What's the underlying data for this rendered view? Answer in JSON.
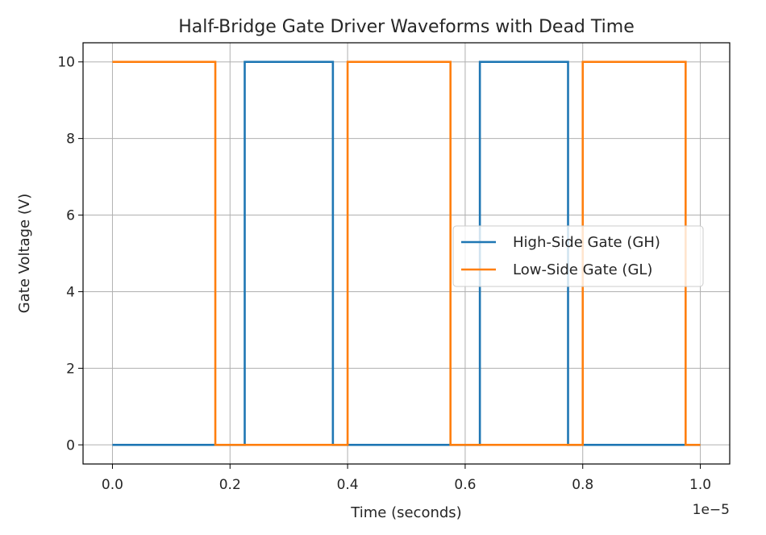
{
  "chart_data": {
    "type": "line",
    "title": "Half-Bridge Gate Driver Waveforms with Dead Time",
    "xlabel": "Time (seconds)",
    "ylabel": "Gate Voltage (V)",
    "x_offset_text": "1e−5",
    "xlim": [
      -0.05,
      1.05
    ],
    "ylim": [
      -0.5,
      10.5
    ],
    "xticks": [
      "0.0",
      "0.2",
      "0.4",
      "0.6",
      "0.8",
      "1.0"
    ],
    "yticks": [
      "0",
      "2",
      "4",
      "6",
      "8",
      "10"
    ],
    "grid": true,
    "legend_placement": "center-right",
    "series": [
      {
        "name": "High-Side Gate (GH)",
        "color": "#1f77b4",
        "x": [
          0,
          0.225,
          0.225,
          0.375,
          0.375,
          0.625,
          0.625,
          0.775,
          0.775,
          1.0
        ],
        "y": [
          0,
          0,
          10,
          10,
          0,
          0,
          10,
          10,
          0,
          0
        ]
      },
      {
        "name": "Low-Side Gate (GL)",
        "color": "#ff7f0e",
        "x": [
          0,
          0.175,
          0.175,
          0.4,
          0.4,
          0.575,
          0.575,
          0.8,
          0.8,
          0.975,
          0.975,
          1.0
        ],
        "y": [
          10,
          10,
          0,
          0,
          10,
          10,
          0,
          0,
          10,
          10,
          0,
          0
        ]
      }
    ]
  }
}
